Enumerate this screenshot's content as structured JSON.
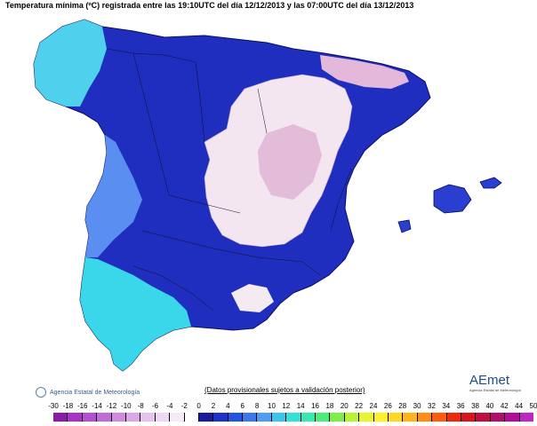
{
  "title": "Temperatura mínima (ºC) registrada entre las 19:10UTC del día 12/12/2013 y las 07:00UTC del día 13/12/2013",
  "agency_label": "Agencia Estatal de Meteorología",
  "disclaimer": "(Datos provisionales sujetos a validación posterior)",
  "brand": "AEmet",
  "brand_sub": "Agencia Estatal de Meteorología",
  "legend": {
    "ticks": [
      "-30",
      "-18",
      "-16",
      "-14",
      "-12",
      "-10",
      "-8",
      "-6",
      "-4",
      "-2",
      "0",
      "2",
      "4",
      "6",
      "8",
      "10",
      "12",
      "14",
      "16",
      "18",
      "20",
      "22",
      "24",
      "26",
      "28",
      "30",
      "32",
      "34",
      "36",
      "38",
      "40",
      "42",
      "44",
      "50"
    ],
    "colors": [
      "#8a1da8",
      "#a535c2",
      "#b44fd0",
      "#c46bd8",
      "#d08ae0",
      "#dba6e8",
      "#e6c2ef",
      "#efd8f3",
      "#f6eaf8",
      "#ffffff",
      "#1a1aa0",
      "#1f32c8",
      "#2455e0",
      "#3c78ec",
      "#4f9cf2",
      "#3ec4e8",
      "#34e0d8",
      "#38e8b0",
      "#4cec78",
      "#7cf048",
      "#b8f434",
      "#e8f430",
      "#fff22c",
      "#ffd624",
      "#ffb41c",
      "#ff8c14",
      "#ff5a10",
      "#f0280c",
      "#d8141c",
      "#c00c40",
      "#b0106c",
      "#b01098",
      "#c026c4"
    ]
  }
}
